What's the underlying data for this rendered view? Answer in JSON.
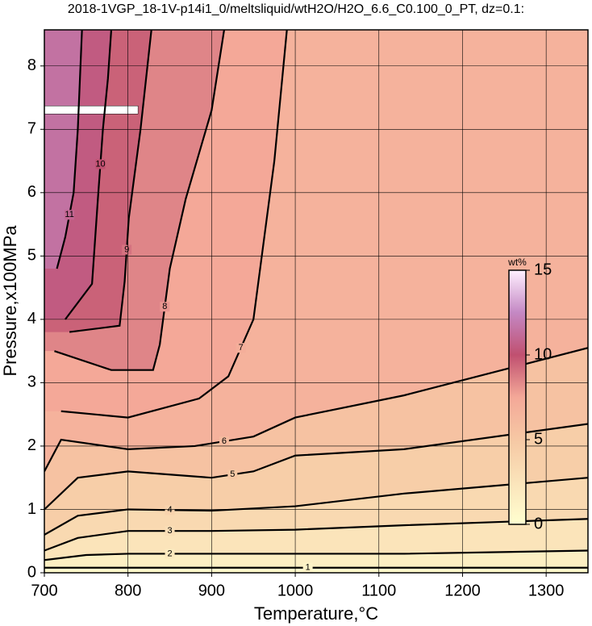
{
  "chart_data": {
    "type": "contour",
    "title": "2018-1VGP_18-1V-p14i1_0/meltsliquid/wtH2O/H2O_6.6_C0.100_0_PT, dz=0.1:",
    "x_label": "Temperature,°C",
    "y_label": "Pressure,x100MPa",
    "xlim": [
      700,
      1350
    ],
    "ylim": [
      0,
      8.57
    ],
    "xticks": [
      700,
      800,
      900,
      1000,
      1100,
      1200,
      1300
    ],
    "yticks": [
      0,
      1,
      2,
      3,
      4,
      5,
      6,
      7,
      8
    ],
    "grid": true,
    "contours": [
      {
        "level": 11,
        "x": [
          715,
          725,
          735,
          740,
          745
        ],
        "y": [
          4.8,
          5.3,
          6.0,
          7.0,
          8.57
        ]
      },
      {
        "level": 10,
        "x": [
          725,
          757,
          764,
          770,
          776,
          780
        ],
        "y": [
          4.0,
          4.56,
          5.9,
          7.0,
          7.8,
          8.57
        ]
      },
      {
        "level": 9,
        "x": [
          730,
          790,
          796,
          801,
          815,
          828
        ],
        "y": [
          3.8,
          3.9,
          4.6,
          5.6,
          7.0,
          8.57
        ]
      },
      {
        "level": 8,
        "x": [
          712,
          780,
          830,
          838,
          850,
          869,
          900,
          915
        ],
        "y": [
          3.5,
          3.2,
          3.2,
          3.6,
          4.8,
          5.9,
          7.3,
          8.57
        ]
      },
      {
        "level": 7,
        "x": [
          720,
          800,
          885,
          920,
          950,
          962,
          975,
          990
        ],
        "y": [
          2.55,
          2.45,
          2.75,
          3.1,
          4.0,
          5.2,
          6.5,
          8.57
        ]
      },
      {
        "level": 6,
        "x": [
          700,
          720,
          800,
          880,
          950,
          1000,
          1130,
          1350
        ],
        "y": [
          1.6,
          2.1,
          1.95,
          2.0,
          2.15,
          2.45,
          2.8,
          3.55
        ]
      },
      {
        "level": 5,
        "x": [
          700,
          740,
          800,
          900,
          950,
          1000,
          1130,
          1350
        ],
        "y": [
          1.0,
          1.5,
          1.6,
          1.5,
          1.6,
          1.85,
          1.95,
          2.35
        ]
      },
      {
        "level": 4,
        "x": [
          700,
          740,
          800,
          900,
          1000,
          1130,
          1350
        ],
        "y": [
          0.6,
          0.9,
          1.0,
          0.98,
          1.05,
          1.25,
          1.5
        ]
      },
      {
        "level": 3,
        "x": [
          700,
          740,
          800,
          900,
          1000,
          1130,
          1350
        ],
        "y": [
          0.35,
          0.55,
          0.66,
          0.66,
          0.68,
          0.75,
          0.85
        ]
      },
      {
        "level": 2,
        "x": [
          700,
          750,
          800,
          900,
          1130,
          1350
        ],
        "y": [
          0.2,
          0.28,
          0.3,
          0.3,
          0.3,
          0.35
        ]
      },
      {
        "level": 1,
        "x": [
          700,
          900,
          1130,
          1350
        ],
        "y": [
          0.08,
          0.08,
          0.08,
          0.08
        ]
      }
    ],
    "colorbar": {
      "label": "wt%",
      "lim": [
        0,
        15
      ],
      "ticks": [
        0,
        5,
        10,
        15
      ],
      "colormap": [
        {
          "value": 0,
          "color": "#ffffd0"
        },
        {
          "value": 5,
          "color": "#f6c8a4"
        },
        {
          "value": 7.5,
          "color": "#f4a898"
        },
        {
          "value": 10,
          "color": "#c05070"
        },
        {
          "value": 12.5,
          "color": "#c488c4"
        },
        {
          "value": 15,
          "color": "#fff0ff"
        }
      ]
    }
  }
}
